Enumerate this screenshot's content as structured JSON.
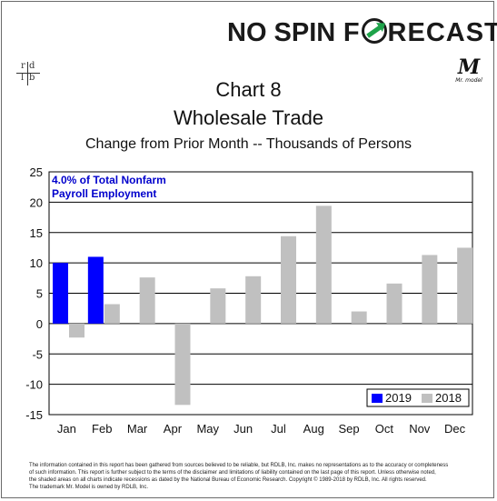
{
  "brand": {
    "logo_text_left": "NO SPIN",
    "logo_text_f": "F",
    "logo_text_right": "RECAST",
    "rdlb_letters": [
      "r",
      "d",
      "l",
      "b"
    ],
    "mr_model_mark": "M",
    "mr_model_caption": "Mr. model"
  },
  "chart_data": {
    "type": "bar",
    "title": "Chart 8",
    "title_line2": "Wholesale Trade",
    "subtitle": "Change from Prior Month -- Thousands of Persons",
    "annotation_line1": "4.0% of Total Nonfarm",
    "annotation_line2": "Payroll Employment",
    "categories": [
      "Jan",
      "Feb",
      "Mar",
      "Apr",
      "May",
      "Jun",
      "Jul",
      "Aug",
      "Sep",
      "Oct",
      "Nov",
      "Dec"
    ],
    "series": [
      {
        "name": "2019",
        "color": "#0000ff",
        "values": [
          10.0,
          11.0,
          null,
          null,
          null,
          null,
          null,
          null,
          null,
          null,
          null,
          null
        ]
      },
      {
        "name": "2018",
        "color": "#c0c0c0",
        "values": [
          -2.3,
          3.2,
          7.6,
          -13.4,
          5.8,
          7.8,
          14.4,
          19.4,
          2.0,
          6.6,
          11.3,
          12.5
        ]
      }
    ],
    "yticks": [
      25,
      20,
      15,
      10,
      5,
      0,
      -5,
      -10,
      -15
    ],
    "ylim": [
      -15,
      25
    ],
    "grid": true,
    "legend_position": "bottom-right"
  },
  "footer": {
    "line1": "The information contained in this report has been gathered from sources believed to be reliable, but RDLB, Inc. makes no representations as to the accuracy or completeness",
    "line2": "of such information. This report is further subject to the terms of the disclaimer and limitations of liability contained on the last page of this report. Unless otherwise noted,",
    "line3": "the shaded areas on all charts indicate recessions as dated by the National Bureau of Economic Research. Copyright © 1989-2018 by RDLB, Inc. All rights reserved.",
    "line4": "The trademark Mr. Model is owned by RDLB, Inc."
  }
}
